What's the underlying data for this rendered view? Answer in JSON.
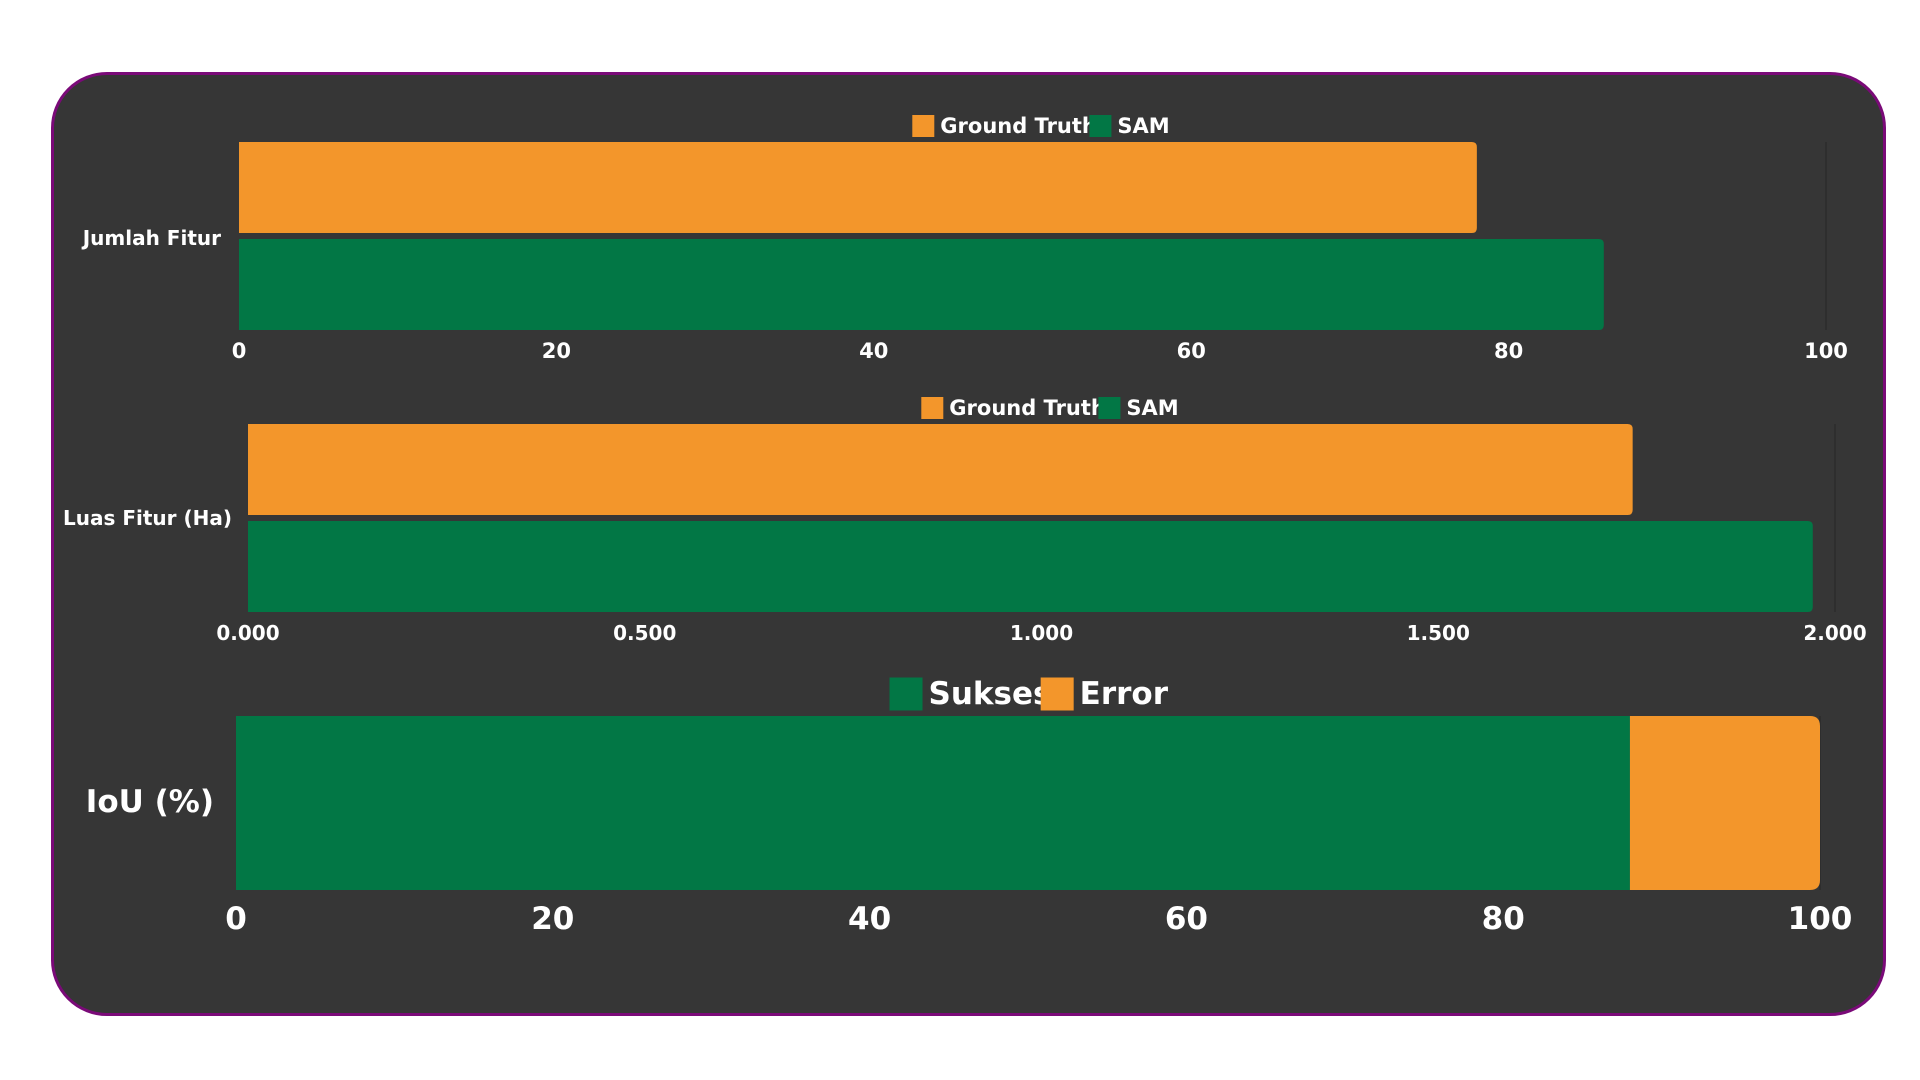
{
  "chart_data": [
    {
      "type": "bar",
      "orientation": "horizontal",
      "categories": [
        "Jumlah Fitur"
      ],
      "series": [
        {
          "name": "Ground Truth",
          "color": "#f3962b",
          "values": [
            78
          ]
        },
        {
          "name": "SAM",
          "color": "#027745",
          "values": [
            86
          ]
        }
      ],
      "xlim": [
        0,
        100
      ],
      "xticks": [
        "0",
        "20",
        "40",
        "60",
        "80",
        "100"
      ],
      "xtick_values": [
        0,
        20,
        40,
        60,
        80,
        100
      ],
      "legend": "top-center",
      "grid": false
    },
    {
      "type": "bar",
      "orientation": "horizontal",
      "categories": [
        "Luas Fitur (Ha)"
      ],
      "series": [
        {
          "name": "Ground Truth",
          "color": "#f3962b",
          "values": [
            1.745
          ]
        },
        {
          "name": "SAM",
          "color": "#027745",
          "values": [
            1.972
          ]
        }
      ],
      "xlim": [
        0,
        2
      ],
      "xticks": [
        "0.000",
        "0.500",
        "1.000",
        "1.500",
        "2.000"
      ],
      "xtick_values": [
        0,
        0.5,
        1,
        1.5,
        2
      ],
      "legend": "top-center",
      "grid": false
    },
    {
      "type": "bar",
      "orientation": "horizontal",
      "stacked": true,
      "categories": [
        "IoU (%)"
      ],
      "series": [
        {
          "name": "Sukses",
          "color": "#027745",
          "values": [
            88
          ]
        },
        {
          "name": "Error",
          "color": "#f3962b",
          "values": [
            12
          ]
        }
      ],
      "xlim": [
        0,
        100
      ],
      "xticks": [
        "0",
        "20",
        "40",
        "60",
        "80",
        "100"
      ],
      "xtick_values": [
        0,
        20,
        40,
        60,
        80,
        100
      ],
      "legend": "top-center",
      "grid": false
    }
  ],
  "colors": {
    "panel_background": "#363636",
    "panel_border": "#7a0a78",
    "page_background": "#ffffff",
    "text": "#ffffff"
  }
}
